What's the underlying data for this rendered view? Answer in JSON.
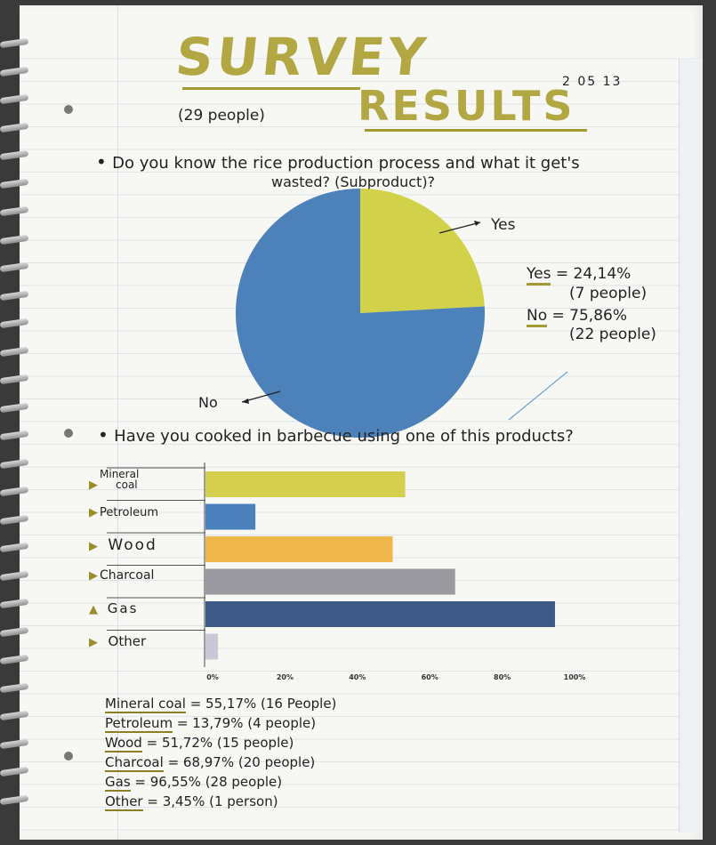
{
  "header": {
    "title_line1": "SURVEY",
    "title_line2": "RESULTS",
    "participants": "(29 people)",
    "date": "2 05 13"
  },
  "question1": {
    "line1": "Do you know the rice production process and what it get's",
    "line2": "wasted? (Subproduct)?",
    "pie_labels": {
      "yes": "Yes",
      "no": "No"
    },
    "legend": [
      {
        "key": "Yes",
        "text": "= 24,14%",
        "people": "(7 people)"
      },
      {
        "key": "No",
        "text": "= 75,86%",
        "people": "(22 people)"
      }
    ]
  },
  "question2": {
    "text": "Have you cooked in barbecue using one of this products?"
  },
  "chart_data": [
    {
      "type": "pie",
      "categories": [
        "Yes",
        "No"
      ],
      "values": [
        24.14,
        75.86
      ],
      "colors": [
        "#d2d24a",
        "#4c82b9"
      ]
    },
    {
      "type": "bar",
      "orientation": "horizontal",
      "categories": [
        "Mineral coal",
        "Petroleum",
        "Wood",
        "Charcoal",
        "Gas",
        "Other"
      ],
      "values": [
        55.17,
        13.79,
        51.72,
        68.97,
        96.55,
        3.45
      ],
      "colors": [
        "#d4cf4e",
        "#4a80bc",
        "#f0b74a",
        "#9a9aa0",
        "#3d5a86",
        "#c8c8d6"
      ],
      "xlim": [
        0,
        100
      ],
      "xticks": [
        "0%",
        "20%",
        "40%",
        "60%",
        "80%",
        "100%"
      ],
      "grid": false
    }
  ],
  "bar_labels": {
    "mineral_coal": [
      "Mineral",
      "coal"
    ],
    "petroleum": "Petroleum",
    "wood": "Wood",
    "charcoal": "Charcoal",
    "gas": "Gas",
    "other": "Other"
  },
  "results": [
    {
      "key": "Mineral coal",
      "text": " = 55,17% (16 People)"
    },
    {
      "key": "Petroleum",
      "text": " = 13,79% (4 people)"
    },
    {
      "key": "Wood",
      "text": " = 51,72% (15 people)"
    },
    {
      "key": "Charcoal",
      "text": " = 68,97% (20 people)"
    },
    {
      "key": "Gas",
      "text": " = 96,55% (28 people)"
    },
    {
      "key": "Other",
      "text": " = 3,45% (1 person)"
    }
  ]
}
